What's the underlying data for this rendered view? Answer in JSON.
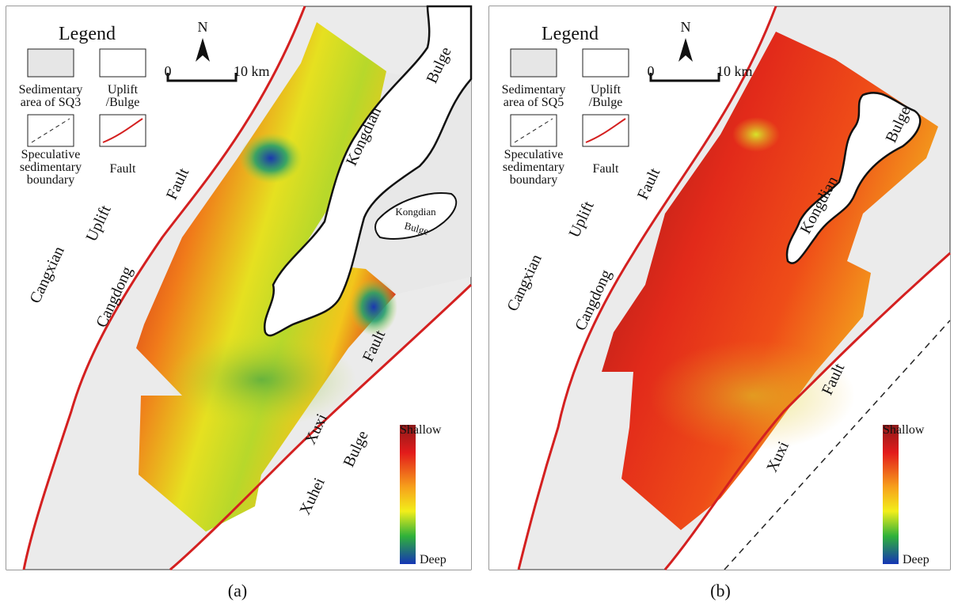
{
  "panels": [
    {
      "legend": {
        "title": "Legend",
        "items": [
          [
            "Sedimentary",
            "area of SQ3"
          ],
          [
            "Uplift",
            "/Bulge"
          ],
          [
            "Speculative",
            "sedimentary",
            "boundary"
          ],
          [
            "Fault"
          ]
        ]
      },
      "north": "N",
      "scale": {
        "start": "0",
        "end": "10 km"
      },
      "labels": [
        "Fault",
        "Uplift",
        "Cangxian",
        "Cangdong",
        "Kongdian",
        "Bulge",
        "Kongdian",
        "Bulge",
        "Fault",
        "Xuxi",
        "Bulge",
        "Xuhei"
      ],
      "colorbar": {
        "top": "Shallow",
        "bottom": "Deep"
      },
      "caption": "(a)"
    },
    {
      "legend": {
        "title": "Legend",
        "items": [
          [
            "Sedimentary",
            "area of SQ5"
          ],
          [
            "Uplift",
            "/Bulge"
          ],
          [
            "Speculative",
            "sedimentary",
            "boundary"
          ],
          [
            "Fault"
          ]
        ]
      },
      "north": "N",
      "scale": {
        "start": "0",
        "end": "10 km"
      },
      "labels": [
        "Fault",
        "Uplift",
        "Cangxian",
        "Cangdong",
        "Bulge",
        "Kongdian",
        "Fault",
        "Xuxi"
      ],
      "colorbar": {
        "top": "Shallow",
        "bottom": "Deep"
      },
      "caption": "(b)"
    }
  ]
}
